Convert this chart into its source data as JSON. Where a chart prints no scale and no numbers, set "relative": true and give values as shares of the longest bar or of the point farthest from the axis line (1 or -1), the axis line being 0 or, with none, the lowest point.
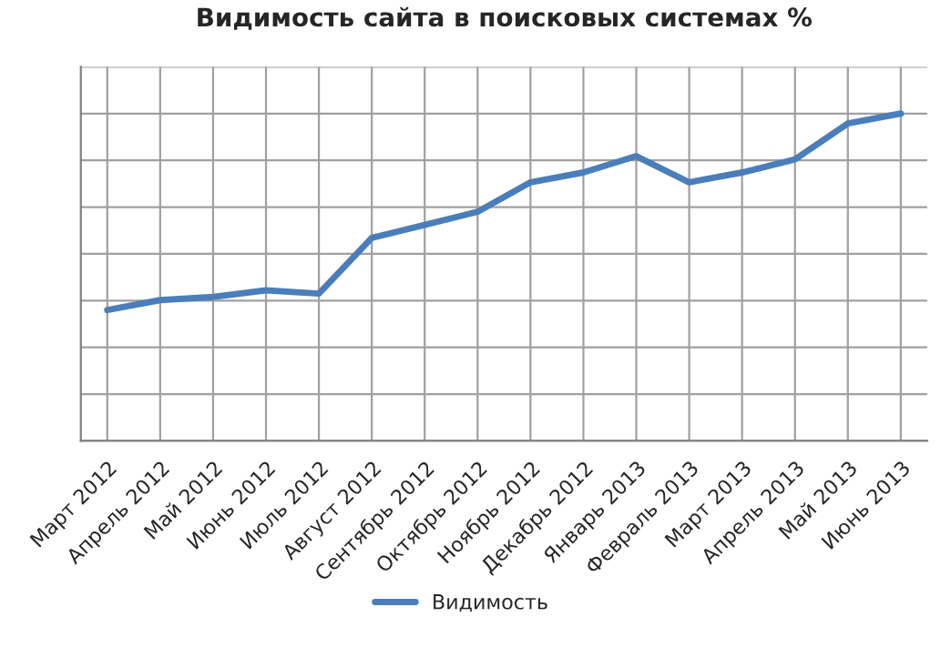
{
  "chart_data": {
    "type": "line",
    "title": "Видимость сайта в поисковых системах %",
    "relative": true,
    "grid": true,
    "legend": "bottom",
    "marker": "none",
    "line_style": "solid",
    "categories": [
      "Март 2012",
      "Апрель 2012",
      "Май 2012",
      "Июнь 2012",
      "Июль 2012",
      "Август 2012",
      "Сентябрь 2012",
      "Октябрь 2012",
      "Ноябрь 2012",
      "Декабрь 2012",
      "Январь 2013",
      "Февраль 2013",
      "Март 2013",
      "Апрель 2013",
      "Май 2013",
      "Июнь 2013"
    ],
    "series": [
      {
        "name": "Видимость",
        "color": "#4a7ebb",
        "values": [
          0.4,
          0.43,
          0.44,
          0.46,
          0.45,
          0.62,
          0.66,
          0.7,
          0.79,
          0.82,
          0.87,
          0.79,
          0.82,
          0.86,
          0.97,
          1.0
        ]
      }
    ]
  }
}
